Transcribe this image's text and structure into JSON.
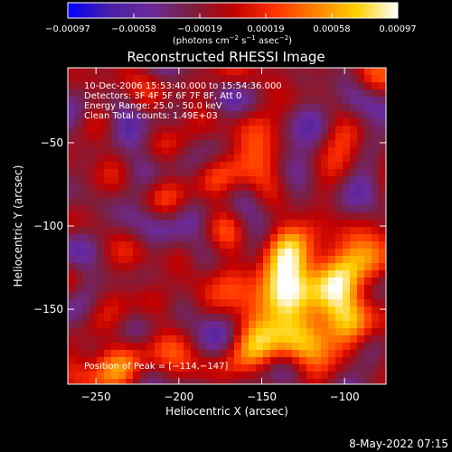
{
  "chart_data": {
    "type": "heatmap",
    "title": "Reconstructed RHESSI Image",
    "xlabel": "Heliocentric X (arcsec)",
    "ylabel": "Heliocentric Y (arcsec)",
    "xlim": [
      -267,
      -75
    ],
    "ylim": [
      -195,
      -5
    ],
    "x_ticks": [
      -250,
      -200,
      -150,
      -100
    ],
    "x_tick_labels": [
      "−250",
      "−200",
      "−150",
      "−100"
    ],
    "y_ticks": [
      -50,
      -100,
      -150
    ],
    "y_tick_labels": [
      "−50",
      "−100",
      "−150"
    ],
    "colorbar": {
      "min": -0.00097,
      "max": 0.00097,
      "tick_labels": [
        "−0.00097",
        "−0.00058",
        "−0.00019",
        "0.00019",
        "0.00058",
        "0.00097"
      ],
      "unit_prefix": "(photons cm",
      "unit_exp1": "−2",
      "unit_mid": " s",
      "unit_exp2": "−1",
      "unit_mid2": " asec",
      "unit_exp3": "−2",
      "unit_suffix": ")"
    },
    "annotations": {
      "time": "10-Dec-2006 15:53:40.000 to 15:54:36.000",
      "detectors": "Detectors: 3F 4F 5F 6F 7F 8F, Att 0",
      "energy": "Energy Range: 25.0 - 50.0 keV",
      "method": "Clean     Total counts: 1.49E+03",
      "peak": "Position of Peak = [−114,−147]"
    },
    "peak": [
      -114,
      -147
    ],
    "grid": false,
    "colors": {
      "colormap_stops": [
        "#0000ff",
        "#4a1fa8",
        "#6a2a9a",
        "#7a2040",
        "#c00000",
        "#ff3000",
        "#ff8000",
        "#ffd000",
        "#ffffff"
      ]
    }
  },
  "footer": {
    "date": "8-May-2022 07:15"
  }
}
